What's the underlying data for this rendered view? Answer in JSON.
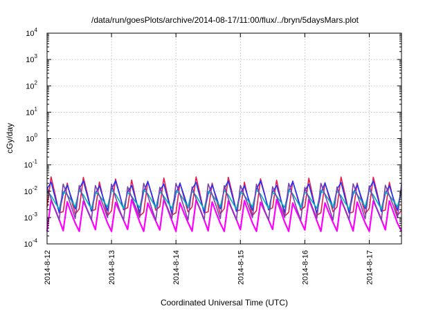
{
  "chart_data": {
    "type": "line",
    "title": "/data/run/goesPlots/archive/2014-08-17/11:00/flux/../bryn/5daysMars.plot",
    "xlabel": "Coordinated Universal Time (UTC)",
    "ylabel": "cGy/day",
    "y_scale": "log",
    "ylim": [
      0.0001,
      10000
    ],
    "y_ticks": [
      {
        "base": "10",
        "exp": "-4"
      },
      {
        "base": "10",
        "exp": "-3"
      },
      {
        "base": "10",
        "exp": "-2"
      },
      {
        "base": "10",
        "exp": "-1"
      },
      {
        "base": "10",
        "exp": "0"
      },
      {
        "base": "10",
        "exp": "1"
      },
      {
        "base": "10",
        "exp": "2"
      },
      {
        "base": "10",
        "exp": "3"
      },
      {
        "base": "10",
        "exp": "4"
      }
    ],
    "x_ticks": [
      "2014-8-12",
      "2014-8-13",
      "2014-8-14",
      "2014-8-15",
      "2014-8-16",
      "2014-8-17"
    ],
    "xlim": [
      "2014-08-12 00:00",
      "2014-08-17 12:00"
    ],
    "grid": true,
    "legend": "none",
    "oscillation_period_hours": 6,
    "series": [
      {
        "color": "#ff00ff",
        "peak": 0.005,
        "trough": 0.0003
      },
      {
        "color": "#e61a4d",
        "peak": 0.05,
        "trough": 0.0005
      },
      {
        "color": "#1a33ff",
        "peak": 0.045,
        "trough": 0.001
      },
      {
        "color": "#00b3b3",
        "peak": 0.012,
        "trough": 0.002
      },
      {
        "color": "#7a3fb0",
        "peak": 0.02,
        "trough": 0.0008
      }
    ]
  }
}
